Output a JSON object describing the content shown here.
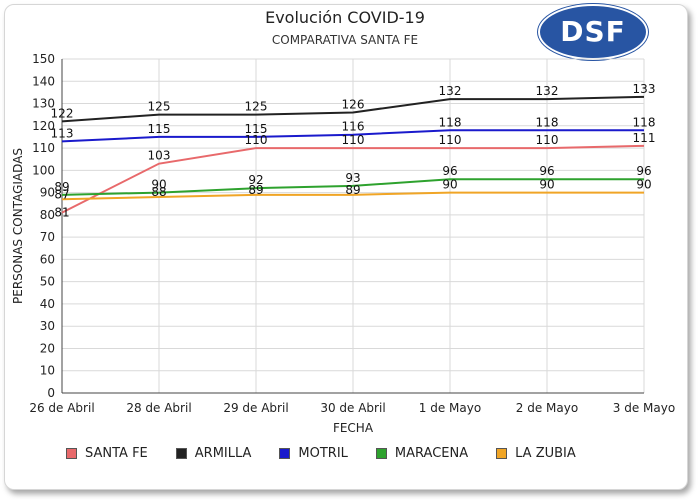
{
  "logo": {
    "text": "DSF"
  },
  "chart_data": {
    "type": "line",
    "title": "Evolución COVID-19",
    "subtitle": "COMPARATIVA SANTA FE",
    "xlabel": "FECHA",
    "ylabel": "PERSONAS CONTAGIADAS",
    "ylim": [
      0,
      150
    ],
    "yticks": [
      "0",
      "10",
      "20",
      "30",
      "40",
      "50",
      "60",
      "70",
      "80",
      "90",
      "100",
      "110",
      "120",
      "130",
      "140",
      "150"
    ],
    "grid": true,
    "legend_position": "bottom",
    "categories": [
      "26 de Abril",
      "28 de Abril",
      "29 de Abril",
      "30 de Abril",
      "1 de Mayo",
      "2 de Mayo",
      "3 de Mayo"
    ],
    "series": [
      {
        "name": "SANTA FE",
        "color": "#e8696b",
        "values": [
          81,
          103,
          110,
          110,
          110,
          110,
          111
        ]
      },
      {
        "name": "ARMILLA",
        "color": "#222222",
        "values": [
          122,
          125,
          125,
          126,
          132,
          132,
          133
        ]
      },
      {
        "name": "MOTRIL",
        "color": "#1a1acc",
        "values": [
          113,
          115,
          115,
          116,
          118,
          118,
          118
        ]
      },
      {
        "name": "MARACENA",
        "color": "#2ea22e",
        "values": [
          89,
          90,
          92,
          93,
          96,
          96,
          96
        ]
      },
      {
        "name": "LA ZUBIA",
        "color": "#f0a526",
        "values": [
          87,
          88,
          89,
          89,
          90,
          90,
          90
        ]
      }
    ]
  }
}
